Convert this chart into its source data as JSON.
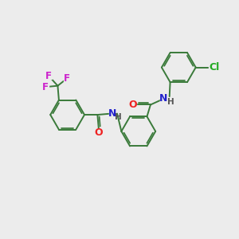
{
  "background_color": "#ececec",
  "bond_color": "#3a7a3a",
  "atom_colors": {
    "O": "#ee2222",
    "N": "#2222cc",
    "F": "#cc22cc",
    "Cl": "#22aa22",
    "H_on_N": "#555555"
  },
  "figsize": [
    3.0,
    3.0
  ],
  "dpi": 100,
  "lw": 1.4,
  "ring_r": 0.72
}
